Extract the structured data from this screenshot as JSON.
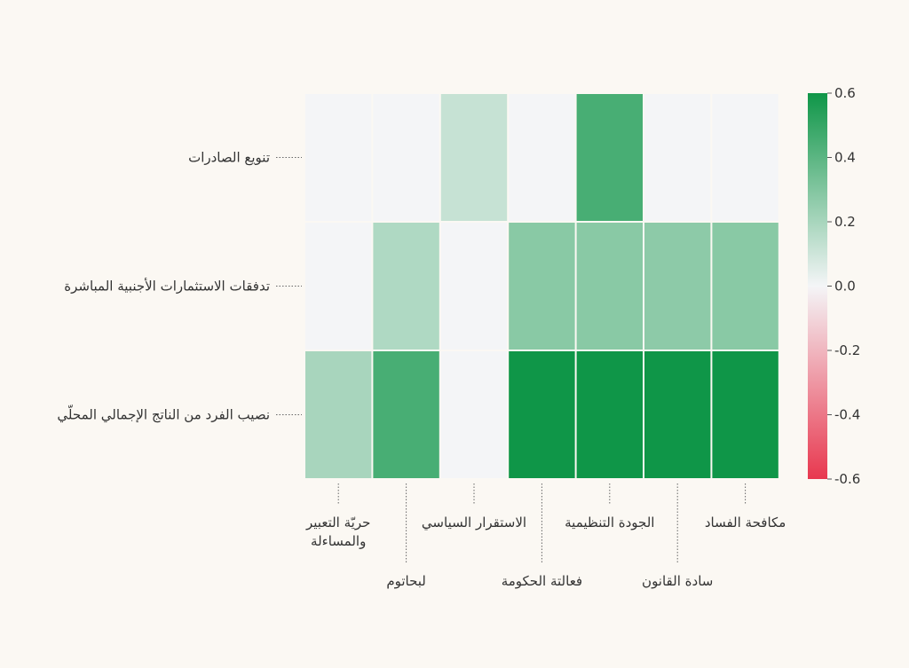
{
  "chart_data": {
    "type": "heatmap",
    "rows": [
      "تنويع الصادرات",
      "تدفقات الاستثمارات الأجنبية المباشرة",
      "نصيب الفرد من الناتج الإجمالي المحلّي"
    ],
    "columns": [
      "حريّة التعبير والمساءلة",
      "لبحاتوم",
      "الاستقرار السياسي",
      "فعالتة الحكومة",
      "الجودة التنظيمية",
      "سادة القانون",
      "مكافحة الفساد"
    ],
    "values": [
      [
        0.0,
        0.0,
        0.12,
        0.0,
        0.45,
        0.0,
        0.0
      ],
      [
        0.0,
        0.18,
        0.0,
        0.28,
        0.28,
        0.27,
        0.28
      ],
      [
        0.2,
        0.45,
        0.0,
        0.6,
        0.6,
        0.6,
        0.6
      ]
    ],
    "colorbar": {
      "min": -0.6,
      "max": 0.6,
      "ticks": [
        "0.6",
        "0.4",
        "0.2",
        "0.0",
        "-0.2",
        "-0.4",
        "-0.6"
      ],
      "colors": {
        "negative": "#e8384f",
        "neutral": "#f4f5f7",
        "positive": "#0f9648"
      }
    },
    "legend_position": "right",
    "grid": false
  }
}
